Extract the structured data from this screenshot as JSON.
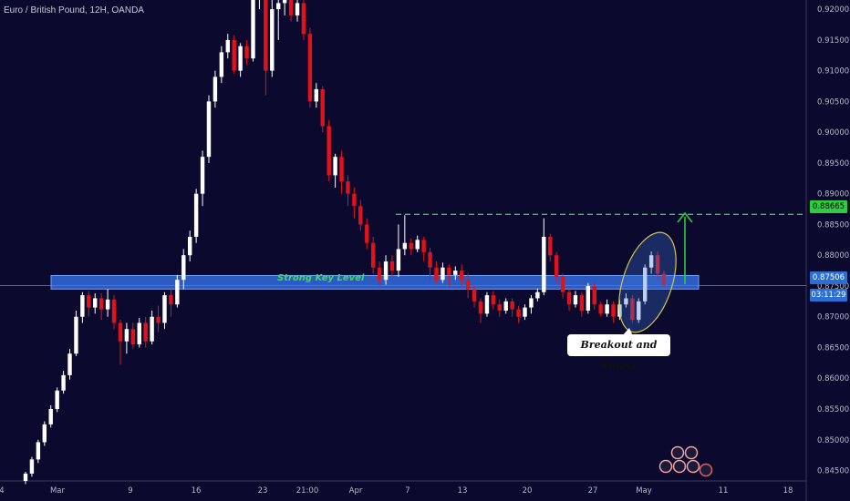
{
  "header": {
    "title": "Euro / British Pound, 12H, OANDA"
  },
  "chart_data": {
    "type": "candlestick",
    "title": "Euro / British Pound, 12H, OANDA",
    "yticks": [
      0.845,
      0.85,
      0.855,
      0.86,
      0.865,
      0.87,
      0.875,
      0.88,
      0.885,
      0.89,
      0.895,
      0.9,
      0.905,
      0.91,
      0.915,
      0.92
    ],
    "ylim": [
      0.8433,
      0.9215
    ],
    "xticks": [
      "4",
      "Mar",
      "9",
      "16",
      "23",
      "21:00",
      "Apr",
      "7",
      "13",
      "20",
      "27",
      "May",
      "11",
      "18"
    ],
    "candles": [
      [
        0.8433,
        0.8445,
        0.8428,
        0.8448
      ],
      [
        0.8445,
        0.8468,
        0.844,
        0.8472
      ],
      [
        0.8468,
        0.8496,
        0.8462,
        0.85
      ],
      [
        0.8496,
        0.8525,
        0.849,
        0.853
      ],
      [
        0.8525,
        0.855,
        0.852,
        0.8556
      ],
      [
        0.855,
        0.858,
        0.8545,
        0.8585
      ],
      [
        0.858,
        0.8605,
        0.8575,
        0.8612
      ],
      [
        0.8605,
        0.864,
        0.8598,
        0.8648
      ],
      [
        0.864,
        0.87,
        0.8636,
        0.871
      ],
      [
        0.87,
        0.8735,
        0.869,
        0.874
      ],
      [
        0.8735,
        0.8715,
        0.87,
        0.8742
      ],
      [
        0.8715,
        0.873,
        0.8705,
        0.8738
      ],
      [
        0.873,
        0.8712,
        0.8695,
        0.8738
      ],
      [
        0.8712,
        0.8728,
        0.87,
        0.8745
      ],
      [
        0.8728,
        0.869,
        0.868,
        0.8735
      ],
      [
        0.869,
        0.866,
        0.8622,
        0.8695
      ],
      [
        0.866,
        0.868,
        0.864,
        0.869
      ],
      [
        0.868,
        0.8655,
        0.8648,
        0.869
      ],
      [
        0.8655,
        0.869,
        0.865,
        0.8698
      ],
      [
        0.869,
        0.866,
        0.865,
        0.87
      ],
      [
        0.866,
        0.87,
        0.8655,
        0.871
      ],
      [
        0.87,
        0.869,
        0.8675,
        0.8718
      ],
      [
        0.869,
        0.8735,
        0.868,
        0.874
      ],
      [
        0.8735,
        0.872,
        0.87,
        0.8745
      ],
      [
        0.872,
        0.876,
        0.8715,
        0.8768
      ],
      [
        0.876,
        0.88,
        0.8745,
        0.881
      ],
      [
        0.88,
        0.883,
        0.879,
        0.884
      ],
      [
        0.883,
        0.89,
        0.882,
        0.8908
      ],
      [
        0.89,
        0.896,
        0.888,
        0.897
      ],
      [
        0.896,
        0.905,
        0.895,
        0.906
      ],
      [
        0.905,
        0.909,
        0.904,
        0.91
      ],
      [
        0.909,
        0.913,
        0.908,
        0.914
      ],
      [
        0.913,
        0.915,
        0.912,
        0.916
      ],
      [
        0.915,
        0.91,
        0.9095,
        0.9158
      ],
      [
        0.91,
        0.914,
        0.909,
        0.9145
      ],
      [
        0.914,
        0.912,
        0.911,
        0.915
      ],
      [
        0.912,
        0.924,
        0.9115,
        0.926
      ],
      [
        0.924,
        0.927,
        0.92,
        0.928
      ],
      [
        0.927,
        0.91,
        0.906,
        0.928
      ],
      [
        0.91,
        0.92,
        0.909,
        0.922
      ],
      [
        0.92,
        0.921,
        0.915,
        0.9215
      ],
      [
        0.921,
        0.922,
        0.919,
        0.923
      ],
      [
        0.922,
        0.919,
        0.918,
        0.923
      ],
      [
        0.919,
        0.921,
        0.918,
        0.922
      ],
      [
        0.921,
        0.916,
        0.915,
        0.922
      ],
      [
        0.916,
        0.905,
        0.904,
        0.917
      ],
      [
        0.905,
        0.907,
        0.904,
        0.908
      ],
      [
        0.907,
        0.901,
        0.9,
        0.9075
      ],
      [
        0.901,
        0.893,
        0.892,
        0.902
      ],
      [
        0.893,
        0.896,
        0.891,
        0.8965
      ],
      [
        0.896,
        0.892,
        0.89,
        0.897
      ],
      [
        0.892,
        0.89,
        0.888,
        0.893
      ],
      [
        0.89,
        0.888,
        0.886,
        0.891
      ],
      [
        0.888,
        0.885,
        0.884,
        0.889
      ],
      [
        0.885,
        0.882,
        0.881,
        0.886
      ],
      [
        0.882,
        0.878,
        0.877,
        0.883
      ],
      [
        0.878,
        0.876,
        0.875,
        0.879
      ],
      [
        0.876,
        0.879,
        0.8752,
        0.88
      ],
      [
        0.879,
        0.8775,
        0.8765,
        0.88
      ],
      [
        0.8775,
        0.881,
        0.8765,
        0.885
      ],
      [
        0.881,
        0.882,
        0.88,
        0.8865
      ],
      [
        0.882,
        0.881,
        0.88,
        0.8828
      ],
      [
        0.881,
        0.8825,
        0.8805,
        0.8832
      ],
      [
        0.8825,
        0.8805,
        0.879,
        0.883
      ],
      [
        0.8805,
        0.878,
        0.876,
        0.8812
      ],
      [
        0.878,
        0.876,
        0.8755,
        0.879
      ],
      [
        0.876,
        0.878,
        0.8755,
        0.8788
      ],
      [
        0.878,
        0.8768,
        0.875,
        0.8785
      ],
      [
        0.8768,
        0.8775,
        0.876,
        0.8782
      ],
      [
        0.8775,
        0.876,
        0.875,
        0.8785
      ],
      [
        0.876,
        0.8745,
        0.873,
        0.877
      ],
      [
        0.8745,
        0.8725,
        0.8715,
        0.875
      ],
      [
        0.8725,
        0.8705,
        0.869,
        0.873
      ],
      [
        0.8705,
        0.8735,
        0.87,
        0.874
      ],
      [
        0.8735,
        0.872,
        0.8712,
        0.8742
      ],
      [
        0.872,
        0.871,
        0.87,
        0.8728
      ],
      [
        0.871,
        0.8725,
        0.8705,
        0.873
      ],
      [
        0.8725,
        0.8712,
        0.87,
        0.873
      ],
      [
        0.8712,
        0.87,
        0.869,
        0.8718
      ],
      [
        0.87,
        0.8715,
        0.8695,
        0.872
      ],
      [
        0.8715,
        0.873,
        0.8705,
        0.8735
      ],
      [
        0.873,
        0.874,
        0.8725,
        0.8746
      ],
      [
        0.874,
        0.883,
        0.8735,
        0.886
      ],
      [
        0.883,
        0.88,
        0.879,
        0.8835
      ],
      [
        0.88,
        0.8765,
        0.8755,
        0.8805
      ],
      [
        0.8765,
        0.874,
        0.873,
        0.877
      ],
      [
        0.874,
        0.872,
        0.871,
        0.8745
      ],
      [
        0.872,
        0.8735,
        0.8715,
        0.8742
      ],
      [
        0.8735,
        0.871,
        0.87,
        0.874
      ],
      [
        0.871,
        0.875,
        0.8705,
        0.8755
      ],
      [
        0.875,
        0.872,
        0.8712,
        0.8755
      ],
      [
        0.872,
        0.8705,
        0.87,
        0.8725
      ],
      [
        0.8705,
        0.872,
        0.87,
        0.8728
      ],
      [
        0.872,
        0.87,
        0.869,
        0.8725
      ],
      [
        0.87,
        0.872,
        0.8695,
        0.8728
      ],
      [
        0.872,
        0.873,
        0.8715,
        0.8738
      ],
      [
        0.873,
        0.8695,
        0.869,
        0.8735
      ],
      [
        0.8695,
        0.8725,
        0.869,
        0.873
      ],
      [
        0.8725,
        0.878,
        0.872,
        0.8785
      ],
      [
        0.878,
        0.88,
        0.877,
        0.8806
      ],
      [
        0.88,
        0.877,
        0.8762,
        0.8806
      ],
      [
        0.877,
        0.8752,
        0.8748,
        0.8775
      ]
    ],
    "key_level": {
      "label": "Strong Key Level",
      "low": 0.8745,
      "high": 0.8767
    },
    "target_level": 0.88665,
    "current_price": 0.87506,
    "annotation": "Breakout and Retest",
    "price_tag": "0.87506",
    "target_tag": "0.88665",
    "timer_tag": "03:11:29",
    "colors": {
      "background": "#0b0a2e",
      "up": "#ffffff",
      "down": "#e0131a",
      "zone": "#3a7bff",
      "target": "#2ecc40"
    }
  }
}
